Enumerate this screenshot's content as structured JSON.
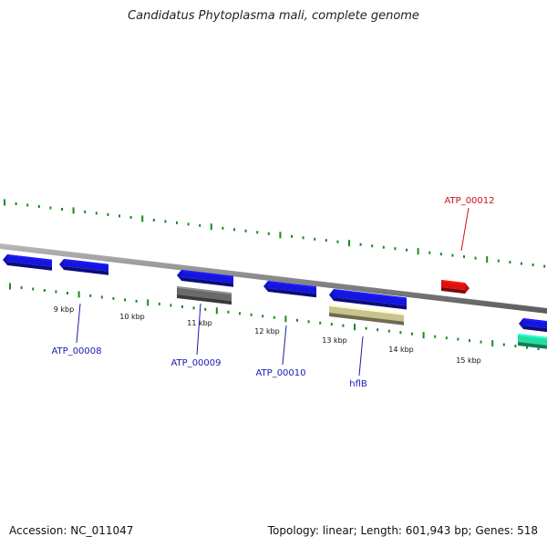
{
  "title": "Candidatus Phytoplasma mali, complete genome",
  "footer": {
    "accession": "Accession: NC_011047",
    "summary": "Topology: linear; Length: 601,943 bp; Genes: 518"
  },
  "colors": {
    "backbone": "#8a8a8a",
    "tick": "#1a8a1a",
    "gene_blue": "#1515e0",
    "gene_red": "#e01010",
    "gene_gray": "#6a6a6a",
    "gene_khaki": "#c8c290",
    "gene_teal": "#20e0a0",
    "label_blue": "#1a1ab0",
    "label_red": "#d01010"
  },
  "scale": {
    "labels": [
      "9 kbp",
      "10 kbp",
      "11 kbp",
      "12 kbp",
      "13 kbp",
      "14 kbp",
      "15 kbp"
    ]
  },
  "gene_labels": [
    {
      "text": "ATP_00008",
      "color": "label_blue"
    },
    {
      "text": "ATP_00009",
      "color": "label_blue"
    },
    {
      "text": "ATP_00010",
      "color": "label_blue"
    },
    {
      "text": "hflB",
      "color": "label_blue"
    },
    {
      "text": "ATP_00012",
      "color": "label_red"
    }
  ]
}
